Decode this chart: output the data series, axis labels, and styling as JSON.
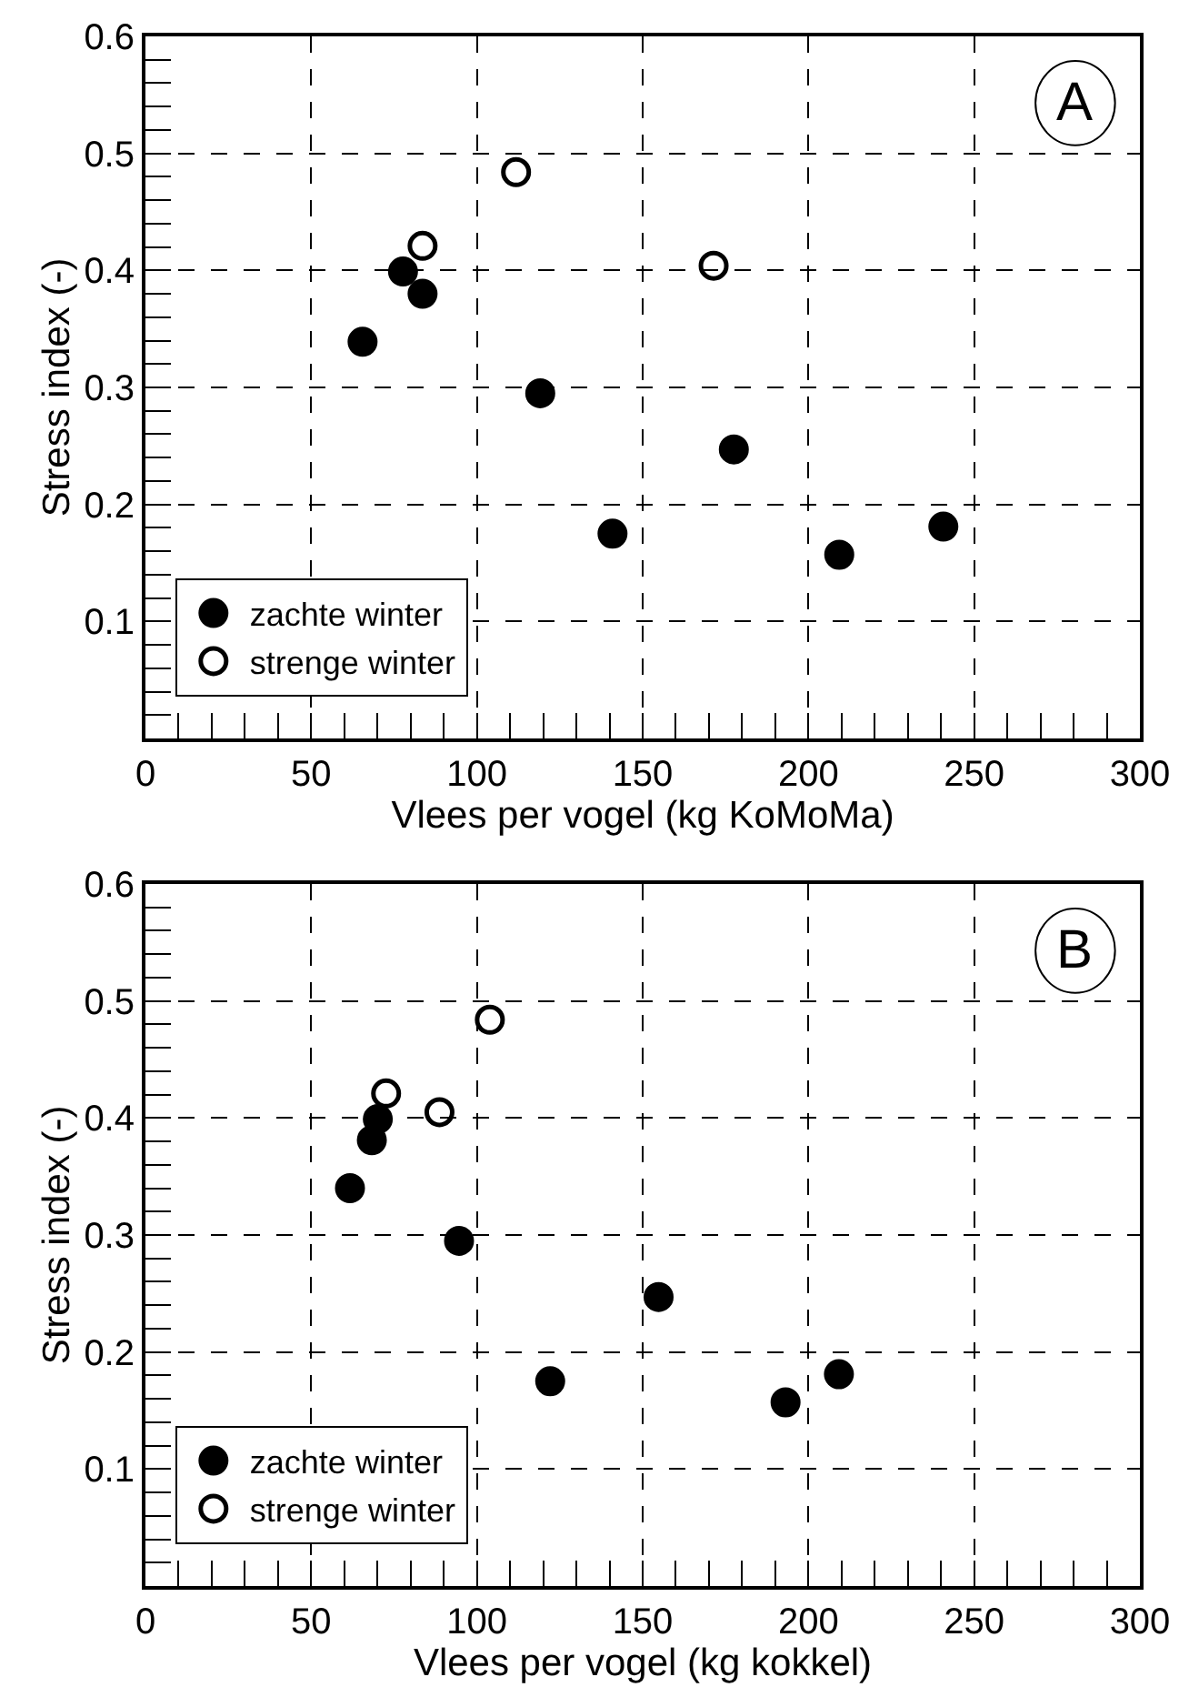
{
  "chart_data": [
    {
      "type": "scatter",
      "xlabel": "Vlees per vogel (kg KoMoMa)",
      "ylabel": "Stress index (-)",
      "annotations": [
        "A"
      ],
      "xlim": [
        0,
        300
      ],
      "xticks": [
        0,
        50,
        100,
        150,
        200,
        250,
        300
      ],
      "ylim": [
        0,
        0.6
      ],
      "yticks": [
        {
          "value": 0,
          "label": null
        },
        0.1,
        0.2,
        0.3,
        0.4,
        0.5,
        0.6
      ],
      "grid": true,
      "legend": "bottom left",
      "marker": "circle",
      "series": [
        {
          "name": "zachte winter",
          "color": "#000000",
          "x": [
            65.5,
            77.7,
            83.6,
            119.1,
            140.9,
            177.5,
            209.3,
            240.7
          ],
          "values": [
            0.339,
            0.399,
            0.38,
            0.295,
            0.175,
            0.247,
            0.157,
            0.181
          ]
        },
        {
          "name": "strenge winter",
          "color": "#000000",
          "marker": "circle-open",
          "x": [
            83.6,
            111.8,
            171.4
          ],
          "values": [
            0.421,
            0.484,
            0.404
          ]
        }
      ]
    },
    {
      "type": "scatter",
      "xlabel": "Vlees per vogel (kg kokkel)",
      "ylabel": "Stress index (-)",
      "annotations": [
        "B"
      ],
      "xlim": [
        0,
        300
      ],
      "xticks": [
        0,
        50,
        100,
        150,
        200,
        250,
        300
      ],
      "ylim": [
        0,
        0.6
      ],
      "yticks": [
        {
          "value": 0,
          "label": null
        },
        0.1,
        0.2,
        0.3,
        0.4,
        0.5,
        0.6
      ],
      "grid": true,
      "legend": "bottom left",
      "marker": "circle",
      "series": [
        {
          "name": "zachte winter",
          "color": "#000000",
          "x": [
            61.7,
            68.3,
            70.1,
            94.6,
            122.1,
            154.8,
            193.1,
            209.2
          ],
          "values": [
            0.34,
            0.381,
            0.399,
            0.295,
            0.175,
            0.247,
            0.157,
            0.181
          ]
        },
        {
          "name": "strenge winter",
          "color": "#000000",
          "marker": "circle-open",
          "x": [
            72.6,
            88.7,
            103.9
          ],
          "values": [
            0.421,
            0.405,
            0.484
          ]
        }
      ]
    }
  ]
}
